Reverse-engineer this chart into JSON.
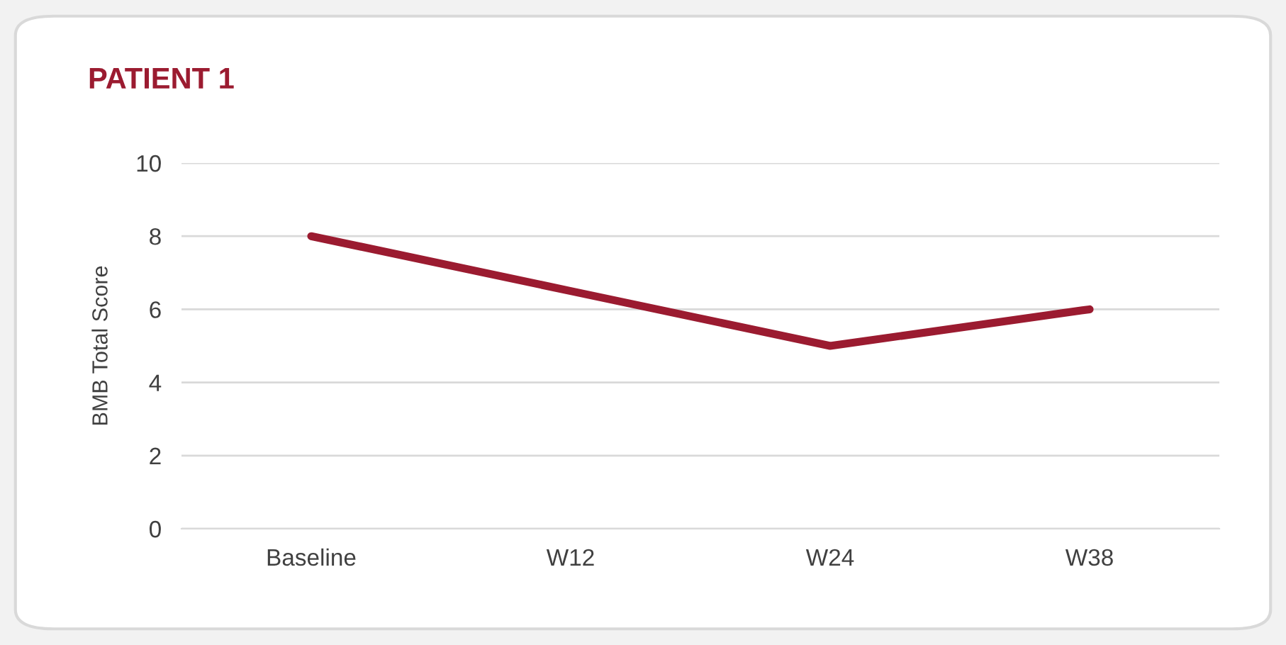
{
  "chart_data": {
    "type": "line",
    "title": "PATIENT 1",
    "ylabel": "BMB Total Score",
    "categories": [
      "Baseline",
      "W12",
      "W24",
      "W38"
    ],
    "series": [
      {
        "color": "#9b1b30",
        "values": [
          8,
          6.5,
          5,
          6
        ]
      }
    ],
    "ylim": [
      0,
      10
    ],
    "yticks": [
      0,
      2,
      4,
      6,
      8,
      10
    ],
    "grid": "y",
    "marker": "none",
    "line_style": "solid"
  }
}
